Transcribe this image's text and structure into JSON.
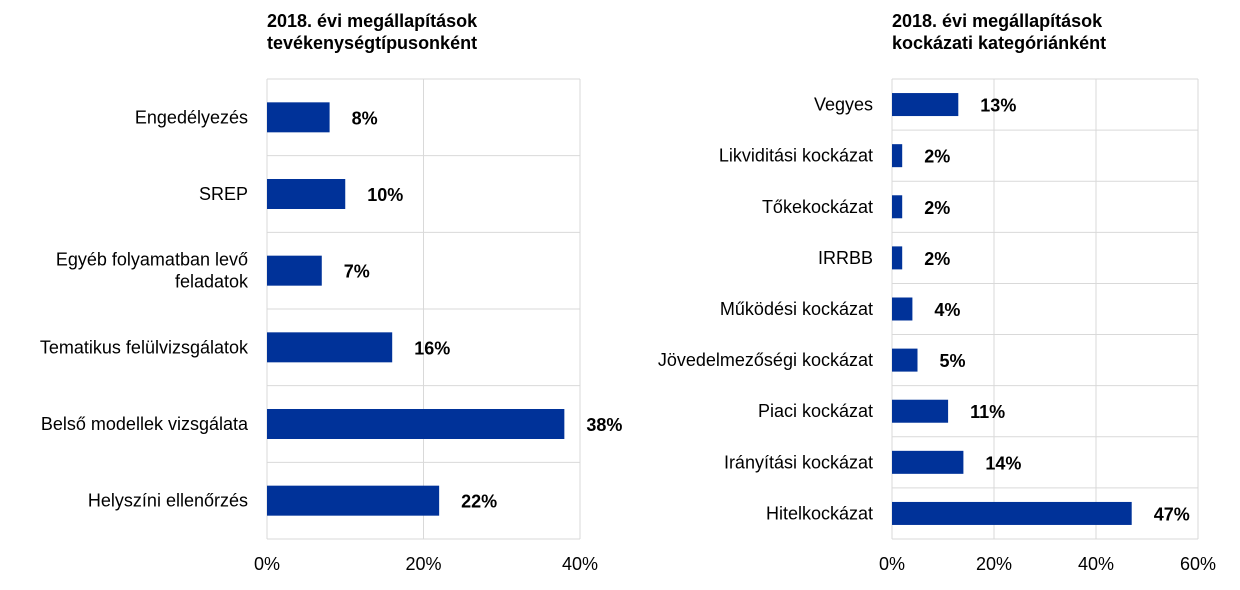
{
  "chart_data": [
    {
      "type": "bar",
      "orientation": "horizontal",
      "title": [
        "2018. évi megállapítások",
        "tevékenységtípusonként"
      ],
      "categories": [
        "Engedélyezés",
        "SREP",
        "Egyéb folyamatban levő feladatok",
        "Tematikus felülvizsgálatok",
        "Belső modellek vizsgálata",
        "Helyszíni ellenőrzés"
      ],
      "category_lines": [
        [
          "Engedélyezés"
        ],
        [
          "SREP"
        ],
        [
          "Egyéb folyamatban levő",
          "feladatok"
        ],
        [
          "Tematikus felülvizsgálatok"
        ],
        [
          "Belső modellek vizsgálata"
        ],
        [
          "Helyszíni ellenőrzés"
        ]
      ],
      "values": [
        8,
        10,
        7,
        16,
        38,
        22
      ],
      "value_labels": [
        "8%",
        "10%",
        "7%",
        "16%",
        "38%",
        "22%"
      ],
      "xlim": [
        0,
        40
      ],
      "xticks": [
        0,
        20,
        40
      ],
      "xtick_labels": [
        "0%",
        "20%",
        "40%"
      ],
      "bar_color": "#003299",
      "grid": true
    },
    {
      "type": "bar",
      "orientation": "horizontal",
      "title": [
        "2018. évi megállapítások",
        "kockázati kategóriánként"
      ],
      "categories": [
        "Vegyes",
        "Likviditási kockázat",
        "Tőkekockázat",
        "IRRBB",
        "Működési kockázat",
        "Jövedelmezőségi kockázat",
        "Piaci kockázat",
        "Irányítási kockázat",
        "Hitelkockázat"
      ],
      "category_lines": [
        [
          "Vegyes"
        ],
        [
          "Likviditási kockázat"
        ],
        [
          "Tőkekockázat"
        ],
        [
          "IRRBB"
        ],
        [
          "Működési kockázat"
        ],
        [
          "Jövedelmezőségi kockázat"
        ],
        [
          "Piaci kockázat"
        ],
        [
          "Irányítási kockázat"
        ],
        [
          "Hitelkockázat"
        ]
      ],
      "values": [
        13,
        2,
        2,
        2,
        4,
        5,
        11,
        14,
        47
      ],
      "value_labels": [
        "13%",
        "2%",
        "2%",
        "2%",
        "4%",
        "5%",
        "11%",
        "14%",
        "47%"
      ],
      "xlim": [
        0,
        60
      ],
      "xticks": [
        0,
        20,
        40,
        60
      ],
      "xtick_labels": [
        "0%",
        "20%",
        "40%",
        "60%"
      ],
      "bar_color": "#003299",
      "grid": true
    }
  ]
}
